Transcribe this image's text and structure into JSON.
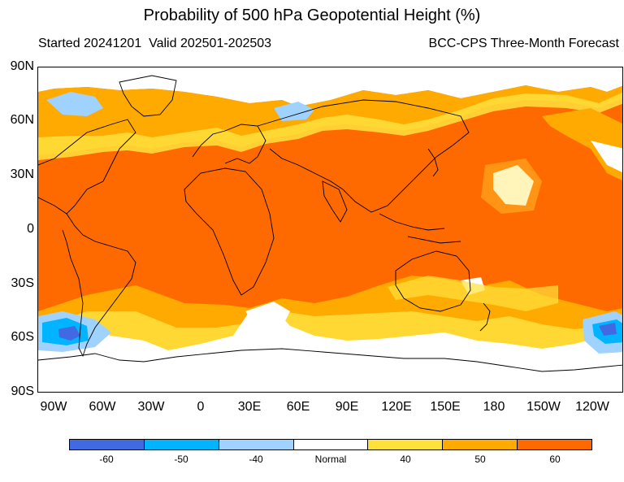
{
  "title": "Probability of 500 hPa Geopotential Height (%)",
  "subtitle_left": "Started 20241201  Valid 202501-202503",
  "subtitle_right": "BCC-CPS Three-Month Forecast",
  "lat_labels": [
    "90N",
    "60N",
    "30N",
    "0",
    "30S",
    "60S",
    "90S"
  ],
  "lon_labels": [
    "90W",
    "60W",
    "30W",
    "0",
    "30E",
    "60E",
    "90E",
    "120E",
    "150E",
    "180",
    "150W",
    "120W"
  ],
  "colorbar": {
    "colors": [
      "#4169e1",
      "#00b4ff",
      "#a0d2ff",
      "#ffffff",
      "#ffe13c",
      "#ffaa00",
      "#ff6a00"
    ],
    "labels": [
      "-60",
      "-50",
      "-40",
      "Normal",
      "40",
      "50",
      "60"
    ]
  },
  "colors": {
    "high60": "#ff6a00",
    "high50": "#ffaa00",
    "high40": "#ffe13c",
    "normal": "#ffffff",
    "low40": "#a0d2ff",
    "low50": "#00b4ff",
    "low60": "#4169e1",
    "coast": "#000000"
  }
}
